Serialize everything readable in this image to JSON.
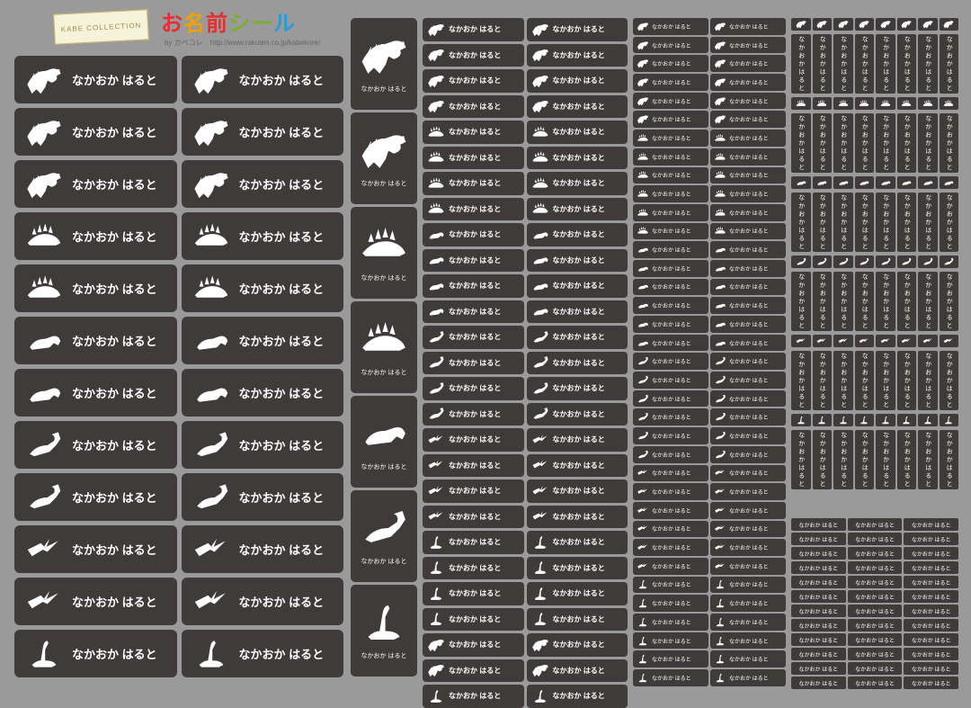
{
  "header": {
    "logo_text": "KABE COLLECTION",
    "title_chars": [
      "お",
      "名",
      "前",
      "シ",
      "ー",
      "ル"
    ],
    "byline": "by カベコレ　http://www.rakuten.co.jp/kabekore/"
  },
  "name": "なかおか はると",
  "colors": {
    "bg": "#9a9a9a",
    "label_bg": "#3f3b3a",
    "text": "#ffffff",
    "title": [
      "#e23030",
      "#f0a000",
      "#e23030",
      "#7aaf2c",
      "#7aaf2c",
      "#2a9ad8"
    ]
  },
  "dinosaurs": [
    "trex",
    "trex",
    "trex",
    "stego",
    "stego",
    "tricera",
    "tricera",
    "parasaur",
    "parasaur",
    "pterodactyl",
    "pterodactyl",
    "brachio",
    "brachio"
  ],
  "large": {
    "cols": 2,
    "rows": 12,
    "icons": [
      "trex",
      "trex",
      "trex",
      "stego",
      "stego",
      "tricera",
      "tricera",
      "parasaur",
      "parasaur",
      "pterodactyl",
      "pterodactyl",
      "brachio"
    ]
  },
  "vertical_col": {
    "count": 7,
    "icons": [
      "trex",
      "trex",
      "stego",
      "stego",
      "tricera",
      "parasaur",
      "brachio"
    ]
  },
  "medium": {
    "cols": 2,
    "rows": 27,
    "icons": [
      "trex",
      "trex",
      "trex",
      "trex",
      "stego",
      "stego",
      "stego",
      "stego",
      "tricera",
      "tricera",
      "tricera",
      "tricera",
      "parasaur",
      "parasaur",
      "parasaur",
      "parasaur",
      "pterodactyl",
      "pterodactyl",
      "pterodactyl",
      "pterodactyl",
      "brachio",
      "brachio",
      "brachio",
      "brachio",
      "trex",
      "trex",
      "brachio"
    ]
  },
  "small": {
    "cols": 2,
    "rows": 36,
    "icons_seq": [
      "trex",
      "stego",
      "tricera",
      "parasaur",
      "pterodactyl",
      "brachio"
    ]
  },
  "tiny_vertical": {
    "groups": 6,
    "per_group": 8
  },
  "tiny_horizontal": {
    "cols": 3,
    "rows": 12
  }
}
